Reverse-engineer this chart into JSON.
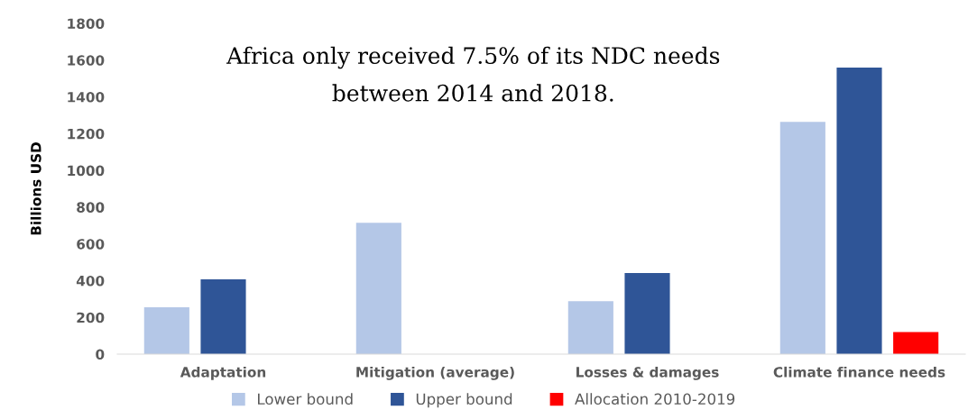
{
  "chart_data": {
    "type": "bar",
    "title": "Africa only received 7.5% of its NDC needs\nbetween 2014 and 2018.",
    "ylabel": "Billions USD",
    "categories": [
      "Adaptation",
      "Mitigation (average)",
      "Losses & damages",
      "Climate finance needs"
    ],
    "series": [
      {
        "name": "Lower bound",
        "color": "#b4c7e7",
        "values": [
          255,
          715,
          288,
          1264
        ]
      },
      {
        "name": "Upper bound",
        "color": "#2f5597",
        "values": [
          407,
          null,
          441,
          1560
        ]
      },
      {
        "name": "Allocation 2010-2019",
        "color": "#ff0000",
        "values": [
          null,
          null,
          null,
          120
        ]
      }
    ],
    "ylim": [
      0,
      1800
    ],
    "yticks": [
      0,
      200,
      400,
      600,
      800,
      1000,
      1200,
      1400,
      1600,
      1800
    ],
    "grid": false,
    "legend": "bottom"
  }
}
